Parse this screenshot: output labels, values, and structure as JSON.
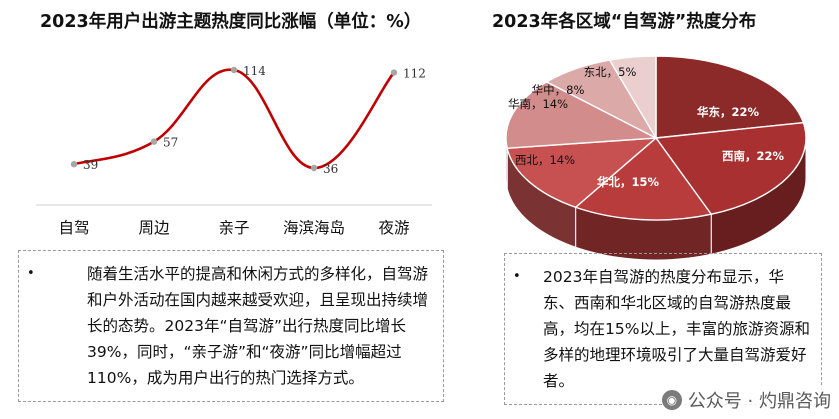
{
  "left": {
    "title": "2023年用户出游主题热度同比涨幅（单位：%）",
    "paragraph": "随着生活水平的提高和休闲方式的多样化，自驾游和户外活动在国内越来越受欢迎，且呈现出持续增长的态势。2023年“自驾游”出行热度同比增长39%，同时，“亲子游”和“夜游”同比增幅超过110%，成为用户出行的热门选择方式。"
  },
  "right": {
    "title": "2023年各区域“自驾游”热度分布",
    "paragraph": "2023年自驾游的热度分布显示，华东、西南和华北区域的自驾游热度最高，均在15%以上，丰富的旅游资源和多样的地理环境吸引了大量自驾游爱好者。"
  },
  "bullet": "•",
  "watermark": "公众号 · 灼鼎咨询",
  "chart_data": [
    {
      "type": "line",
      "title": "2023年用户出游主题热度同比涨幅（单位：%）",
      "categories": [
        "自驾",
        "周边",
        "亲子",
        "海滨海岛",
        "夜游"
      ],
      "values": [
        39,
        57,
        114,
        36,
        112
      ],
      "line_color": "#c00000",
      "marker_color": "#a6a6a6",
      "ylim": [
        0,
        130
      ],
      "grid": false
    },
    {
      "type": "pie",
      "title": "2023年各区域“自驾游”热度分布",
      "slices": [
        {
          "label": "华东",
          "value": 22,
          "text": "华东，22%",
          "color": "#8c2a2a"
        },
        {
          "label": "西南",
          "value": 22,
          "text": "西南，22%",
          "color": "#a83030"
        },
        {
          "label": "华北",
          "value": 15,
          "text": "华北，15%",
          "color": "#b83c3c"
        },
        {
          "label": "西北",
          "value": 14,
          "text": "西北，14%",
          "color": "#c75050"
        },
        {
          "label": "华南",
          "value": 14,
          "text": "华南，14%",
          "color": "#d28c8c"
        },
        {
          "label": "华中",
          "value": 8,
          "text": "华中，8%",
          "color": "#dca9a9"
        },
        {
          "label": "东北",
          "value": 5,
          "text": "东北，5%",
          "color": "#ebcfcf"
        }
      ]
    }
  ]
}
